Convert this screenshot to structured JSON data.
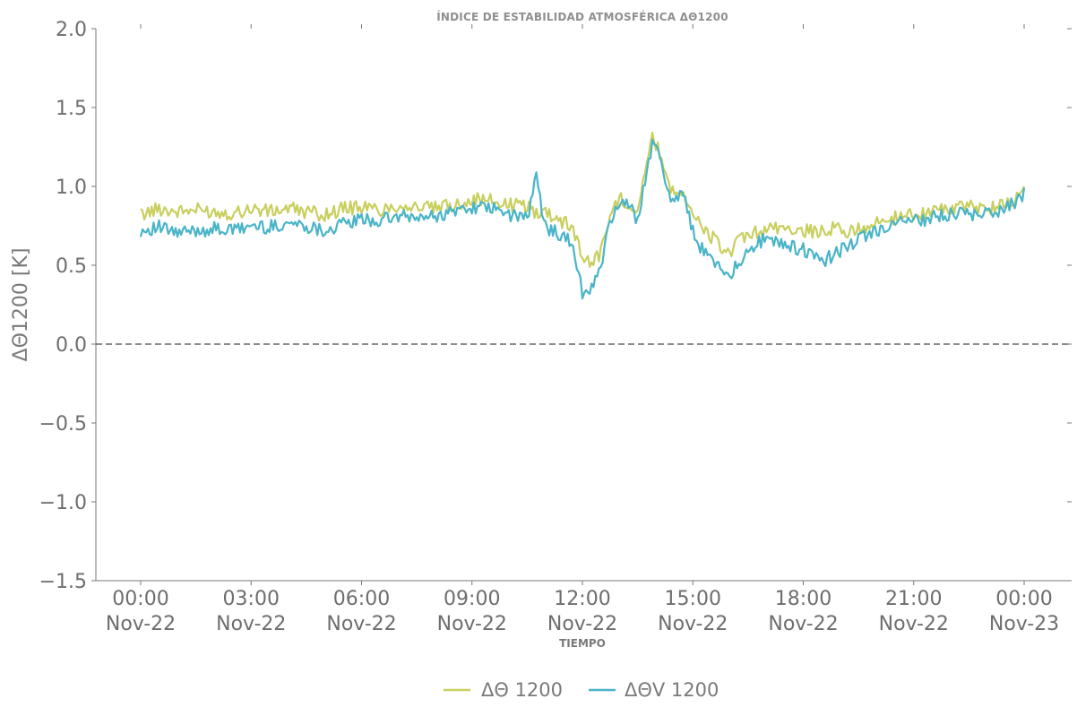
{
  "chart_data": {
    "type": "line",
    "title": "ÍNDICE DE ESTABILIDAD ATMOSFÉRICA ΔΘ1200",
    "xlabel": "TIEMPO",
    "ylabel": "ΔΘ1200 [K]",
    "ylim": [
      -1.5,
      2.0
    ],
    "yticks": [
      -1.5,
      -1.0,
      -0.5,
      0.0,
      0.5,
      1.0,
      1.5,
      2.0
    ],
    "ytick_labels": [
      "−1.5",
      "−1.0",
      "−0.5",
      "0.0",
      "0.5",
      "1.0",
      "1.5",
      "2.0"
    ],
    "xlim": [
      0,
      24
    ],
    "xticks": [
      0,
      3,
      6,
      9,
      12,
      15,
      18,
      21,
      24
    ],
    "xtick_labels": [
      [
        "00:00",
        "Nov-22"
      ],
      [
        "03:00",
        "Nov-22"
      ],
      [
        "06:00",
        "Nov-22"
      ],
      [
        "09:00",
        "Nov-22"
      ],
      [
        "12:00",
        "Nov-22"
      ],
      [
        "15:00",
        "Nov-22"
      ],
      [
        "18:00",
        "Nov-22"
      ],
      [
        "21:00",
        "Nov-22"
      ],
      [
        "00:00",
        "Nov-23"
      ]
    ],
    "reference_line": {
      "y": 0.0,
      "style": "dashed",
      "color": "#666666"
    },
    "grid": false,
    "legend_position": "bottom-center",
    "x_unit": "hours",
    "series": [
      {
        "name": "ΔΘ 1200",
        "color": "#c9cf5f",
        "x": [
          0,
          0.5,
          1,
          1.5,
          2,
          2.5,
          3,
          3.5,
          4,
          4.5,
          5,
          5.5,
          6,
          6.5,
          7,
          7.5,
          8,
          8.5,
          9,
          9.5,
          10,
          10.5,
          10.75,
          11,
          11.25,
          11.5,
          11.75,
          12,
          12.25,
          12.5,
          12.75,
          13,
          13.25,
          13.5,
          13.75,
          13.9,
          14.1,
          14.4,
          14.75,
          15,
          15.25,
          15.5,
          15.75,
          16,
          16.25,
          16.5,
          16.75,
          17,
          17.5,
          18,
          18.5,
          18.9,
          19.25,
          19.5,
          20,
          20.5,
          21,
          21.5,
          22,
          22.5,
          23,
          23.5,
          24
        ],
        "values": [
          0.82,
          0.86,
          0.84,
          0.85,
          0.84,
          0.83,
          0.86,
          0.84,
          0.86,
          0.84,
          0.82,
          0.86,
          0.87,
          0.85,
          0.88,
          0.87,
          0.86,
          0.88,
          0.92,
          0.91,
          0.88,
          0.88,
          0.83,
          0.84,
          0.81,
          0.77,
          0.74,
          0.55,
          0.52,
          0.58,
          0.82,
          0.92,
          0.9,
          0.85,
          1.15,
          1.3,
          1.22,
          0.98,
          0.97,
          0.82,
          0.73,
          0.68,
          0.62,
          0.58,
          0.65,
          0.68,
          0.71,
          0.72,
          0.74,
          0.72,
          0.71,
          0.74,
          0.7,
          0.74,
          0.76,
          0.8,
          0.83,
          0.84,
          0.86,
          0.87,
          0.86,
          0.89,
          0.97
        ]
      },
      {
        "name": "ΔΘV 1200",
        "color": "#4ab4c8",
        "x": [
          0,
          0.5,
          1,
          1.5,
          2,
          2.5,
          3,
          3.5,
          4,
          4.5,
          5,
          5.5,
          6,
          6.5,
          7,
          7.5,
          8,
          8.5,
          9,
          9.5,
          10,
          10.5,
          10.75,
          11,
          11.25,
          11.5,
          11.75,
          12,
          12.25,
          12.5,
          12.75,
          13,
          13.25,
          13.5,
          13.75,
          13.9,
          14.1,
          14.4,
          14.75,
          15,
          15.25,
          15.5,
          15.75,
          16,
          16.25,
          16.5,
          16.75,
          17,
          17.5,
          18,
          18.5,
          18.9,
          19.25,
          19.5,
          20,
          20.5,
          21,
          21.5,
          22,
          22.5,
          23,
          23.5,
          24
        ],
        "values": [
          0.72,
          0.74,
          0.7,
          0.72,
          0.73,
          0.72,
          0.75,
          0.74,
          0.77,
          0.75,
          0.72,
          0.76,
          0.79,
          0.78,
          0.81,
          0.8,
          0.81,
          0.84,
          0.87,
          0.86,
          0.82,
          0.8,
          1.05,
          0.74,
          0.72,
          0.68,
          0.62,
          0.32,
          0.36,
          0.48,
          0.78,
          0.9,
          0.88,
          0.78,
          1.12,
          1.27,
          1.18,
          0.92,
          0.95,
          0.72,
          0.6,
          0.54,
          0.5,
          0.44,
          0.52,
          0.58,
          0.65,
          0.66,
          0.63,
          0.6,
          0.52,
          0.58,
          0.62,
          0.66,
          0.72,
          0.76,
          0.78,
          0.8,
          0.82,
          0.83,
          0.82,
          0.86,
          0.95
        ]
      }
    ]
  }
}
